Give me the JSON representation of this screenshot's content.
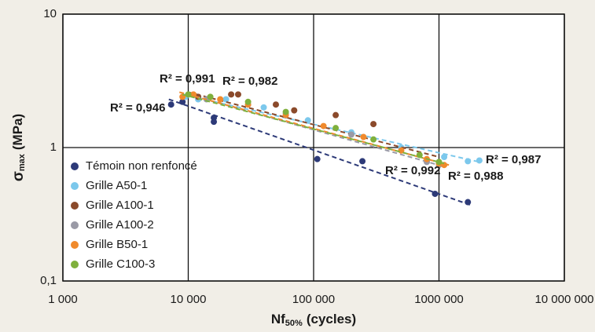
{
  "chart_data": {
    "type": "scatter",
    "x_label": {
      "text": "Nf",
      "sub": "50%",
      "unit": "(cycles)"
    },
    "y_label": {
      "text": "σ",
      "sub": "max",
      "unit": "(MPa)"
    },
    "xscale": "log",
    "yscale": "log",
    "grid": true,
    "legend": "lower left",
    "xlim": [
      1000,
      10000000
    ],
    "ylim": [
      0.1,
      10
    ],
    "xticks": [
      {
        "value": 1000,
        "label": "1 000"
      },
      {
        "value": 10000,
        "label": "10 000"
      },
      {
        "value": 100000,
        "label": "100 000"
      },
      {
        "value": 1000000,
        "label": "1000 000"
      },
      {
        "value": 10000000,
        "label": "10 000 000"
      }
    ],
    "yticks": [
      {
        "value": 0.1,
        "label": "0,1"
      },
      1,
      10
    ],
    "series": [
      {
        "name": "Témoin non renfoncé",
        "color": "#2d3a78",
        "r2_label": "R² = 0,946",
        "x": [
          7300,
          9000,
          16000,
          16000,
          107000,
          245000,
          930000,
          1700000
        ],
        "values": [
          2.1,
          2.2,
          1.67,
          1.56,
          0.82,
          0.79,
          0.45,
          0.39
        ],
        "trend": {
          "x": [
            7000,
            1800000
          ],
          "values": [
            2.3,
            0.37
          ]
        }
      },
      {
        "name": "Grille A50-1",
        "color": "#7cc8ec",
        "r2_label": "R² = 0,987",
        "x": [
          9500,
          12000,
          20000,
          40000,
          90000,
          200000,
          500000,
          1100000,
          1700000,
          2100000
        ],
        "values": [
          2.4,
          2.3,
          2.3,
          2.0,
          1.6,
          1.3,
          1.0,
          0.85,
          0.79,
          0.8
        ],
        "trend": {
          "x": [
            9000,
            2100000
          ],
          "values": [
            2.5,
            0.78
          ]
        }
      },
      {
        "name": "Grille A100-1",
        "color": "#8b4a2b",
        "r2_label": "R² = 0,982",
        "x": [
          12000,
          22000,
          25000,
          50000,
          70000,
          150000,
          300000
        ],
        "values": [
          2.4,
          2.5,
          2.5,
          2.1,
          1.9,
          1.75,
          1.5
        ],
        "trend": {
          "x": [
            10000,
            1000000
          ],
          "values": [
            2.6,
            0.85
          ]
        }
      },
      {
        "name": "Grille A100-2",
        "color": "#9a9aa6",
        "r2_label": "R² = 0,988",
        "x": [
          14000,
          30000,
          60000,
          200000,
          800000,
          1000000
        ],
        "values": [
          2.3,
          2.1,
          1.8,
          1.25,
          0.78,
          0.74
        ],
        "trend": {
          "x": [
            10000,
            1100000
          ],
          "values": [
            2.5,
            0.72
          ]
        }
      },
      {
        "name": "Grille B50-1",
        "color": "#f08a2c",
        "r2_label": "R² = 0,991",
        "x": [
          9000,
          11000,
          18000,
          30000,
          60000,
          120000,
          250000,
          500000,
          800000,
          1000000,
          1100000
        ],
        "values": [
          2.4,
          2.5,
          2.3,
          2.1,
          1.75,
          1.45,
          1.2,
          0.95,
          0.82,
          0.76,
          0.74
        ],
        "trend": {
          "x": [
            8500,
            1200000
          ],
          "values": [
            2.6,
            0.74
          ]
        }
      },
      {
        "name": "Grille C100-3",
        "color": "#7fb03c",
        "r2_label": "R² = 0,992",
        "x": [
          10000,
          15000,
          30000,
          60000,
          150000,
          300000,
          700000,
          1000000
        ],
        "values": [
          2.5,
          2.4,
          2.2,
          1.85,
          1.4,
          1.15,
          0.88,
          0.78
        ],
        "trend": {
          "x": [
            9000,
            1100000
          ],
          "values": [
            2.5,
            0.76
          ]
        }
      }
    ]
  }
}
